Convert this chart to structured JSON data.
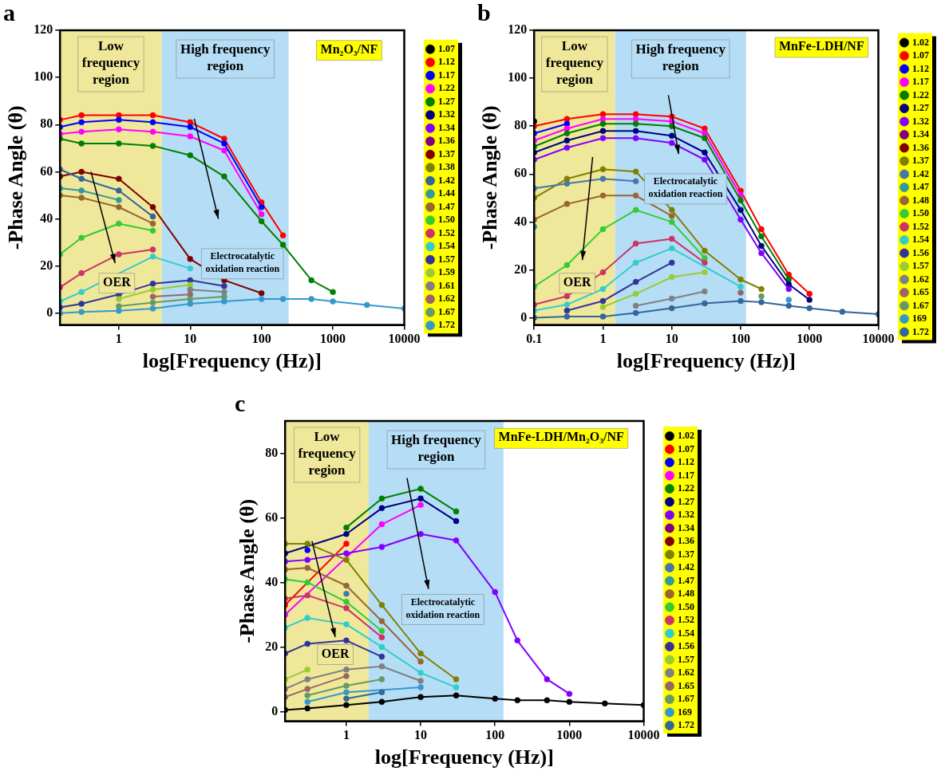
{
  "chart_data": [
    {
      "type": "line",
      "title": "a",
      "xlabel": "log[Frequency (Hz)]",
      "ylabel": "-Phase Angle (θ)",
      "log": "x",
      "marker": "circle",
      "legend": "right",
      "xlim": [
        0.15,
        10000
      ],
      "xticks": [
        1,
        10,
        100,
        1000,
        10000
      ],
      "ylim": [
        -5,
        120
      ],
      "yticks": [
        0,
        20,
        40,
        60,
        80,
        100,
        120
      ],
      "bands": [
        {
          "axis": "x",
          "from": 0.15,
          "to": 4,
          "label": "Low frequency region",
          "color": "#efe89a"
        },
        {
          "axis": "x",
          "from": 4,
          "to": 240,
          "label": "High frequency region",
          "color": "#b5ddf6"
        }
      ],
      "annotations": [
        "Mn₂O₃/NF",
        "Electrocatalytic oxidation reaction",
        "OER"
      ],
      "x": [
        0.15,
        0.3,
        1,
        3,
        10,
        30,
        100,
        200,
        500,
        1000,
        3000,
        10000
      ],
      "series": [
        {
          "name": "1.07",
          "color": "#000000",
          "values": [
            null,
            null,
            null,
            null,
            null,
            null,
            null,
            null,
            null,
            null,
            null,
            null
          ]
        },
        {
          "name": "1.12",
          "color": "#ff0000",
          "values": [
            82,
            84,
            84,
            84,
            81,
            74,
            47,
            33,
            null,
            null,
            null,
            null
          ]
        },
        {
          "name": "1.17",
          "color": "#0000ff",
          "values": [
            79,
            81,
            82,
            81,
            79,
            72,
            45,
            null,
            null,
            null,
            null,
            null
          ]
        },
        {
          "name": "1.22",
          "color": "#ff00ff",
          "values": [
            76,
            77,
            78,
            77,
            75,
            69,
            42,
            null,
            null,
            null,
            null,
            null
          ]
        },
        {
          "name": "1.27",
          "color": "#008000",
          "values": [
            74,
            72,
            72,
            71,
            67,
            58,
            39,
            29,
            14,
            9,
            null,
            null
          ]
        },
        {
          "name": "1.32",
          "color": "#000080",
          "values": [
            null,
            null,
            null,
            null,
            null,
            null,
            null,
            null,
            null,
            null,
            null,
            null
          ]
        },
        {
          "name": "1.34",
          "color": "#8000ff",
          "values": [
            null,
            null,
            null,
            null,
            null,
            null,
            null,
            null,
            null,
            null,
            null,
            null
          ]
        },
        {
          "name": "1.36",
          "color": "#800080",
          "values": [
            null,
            null,
            null,
            null,
            null,
            null,
            null,
            null,
            null,
            null,
            null,
            null
          ]
        },
        {
          "name": "1.37",
          "color": "#800000",
          "values": [
            58,
            60,
            57,
            45,
            23,
            14,
            8.5,
            null,
            null,
            null,
            null,
            null
          ]
        },
        {
          "name": "1.38",
          "color": "#808000",
          "values": [
            null,
            null,
            null,
            null,
            null,
            null,
            null,
            null,
            null,
            null,
            null,
            null
          ]
        },
        {
          "name": "1.42",
          "color": "#336699",
          "values": [
            61,
            57,
            52,
            41,
            null,
            null,
            null,
            null,
            null,
            null,
            null,
            null
          ]
        },
        {
          "name": "1.44",
          "color": "#339999",
          "values": [
            53,
            52,
            48,
            null,
            null,
            null,
            null,
            null,
            null,
            null,
            null,
            null
          ]
        },
        {
          "name": "1.47",
          "color": "#996633",
          "values": [
            50,
            49,
            45,
            38,
            null,
            null,
            null,
            null,
            null,
            null,
            null,
            null
          ]
        },
        {
          "name": "1.50",
          "color": "#33cc33",
          "values": [
            25,
            32,
            38,
            35,
            null,
            null,
            null,
            null,
            null,
            null,
            null,
            null
          ]
        },
        {
          "name": "1.52",
          "color": "#cc3366",
          "values": [
            11,
            17,
            25,
            27,
            null,
            null,
            null,
            null,
            null,
            null,
            null,
            null
          ]
        },
        {
          "name": "1.54",
          "color": "#33cccc",
          "values": [
            5,
            9,
            null,
            24,
            19,
            null,
            null,
            null,
            null,
            null,
            null,
            null
          ]
        },
        {
          "name": "1.57",
          "color": "#333399",
          "values": [
            2.5,
            4,
            8,
            12.5,
            14,
            11.5,
            null,
            null,
            null,
            null,
            null,
            null
          ]
        },
        {
          "name": "1.59",
          "color": "#99cc33",
          "values": [
            null,
            null,
            6,
            10,
            12,
            null,
            null,
            null,
            null,
            null,
            null,
            null
          ]
        },
        {
          "name": "1.61",
          "color": "#808080",
          "values": [
            null,
            null,
            null,
            null,
            10,
            9,
            null,
            null,
            null,
            null,
            null,
            null
          ]
        },
        {
          "name": "1.62",
          "color": "#996666",
          "values": [
            null,
            null,
            null,
            7,
            8,
            null,
            null,
            null,
            null,
            null,
            null,
            null
          ]
        },
        {
          "name": "1.67",
          "color": "#669966",
          "values": [
            null,
            null,
            3,
            4.5,
            6,
            7,
            null,
            null,
            null,
            null,
            null,
            null
          ]
        },
        {
          "name": "1.72",
          "color": "#3399cc",
          "values": [
            0,
            0.5,
            1,
            2,
            4,
            5,
            6,
            6,
            6,
            5,
            3.5,
            2
          ]
        }
      ]
    },
    {
      "type": "line",
      "title": "b",
      "xlabel": "log[Frequency (Hz)]",
      "ylabel": "-Phase Angle (θ)",
      "log": "x",
      "marker": "circle",
      "legend": "right",
      "xlim": [
        0.1,
        10000
      ],
      "xticks": [
        0.1,
        1,
        10,
        100,
        1000,
        10000
      ],
      "ylim": [
        -3,
        120
      ],
      "yticks": [
        0,
        20,
        40,
        60,
        80,
        100,
        120
      ],
      "bands": [
        {
          "axis": "x",
          "from": 0.1,
          "to": 1.5,
          "label": "Low frequency region",
          "color": "#efe89a"
        },
        {
          "axis": "x",
          "from": 1.5,
          "to": 120,
          "label": "High frequency region",
          "color": "#b5ddf6"
        }
      ],
      "annotations": [
        "MnFe-LDH/NF",
        "Electrocatalytic oxidation reaction",
        "OER"
      ],
      "x": [
        0.1,
        0.3,
        1,
        3,
        10,
        30,
        100,
        200,
        500,
        1000,
        3000,
        10000
      ],
      "series": [
        {
          "name": "1.02",
          "color": "#000000",
          "values": [
            82,
            null,
            null,
            null,
            null,
            null,
            null,
            null,
            null,
            null,
            null,
            null
          ]
        },
        {
          "name": "1.07",
          "color": "#ff0000",
          "values": [
            80,
            83,
            85,
            85,
            84,
            79,
            53,
            37,
            18,
            10,
            null,
            null
          ]
        },
        {
          "name": "1.12",
          "color": "#0000ff",
          "values": [
            77,
            81,
            null,
            null,
            null,
            null,
            null,
            null,
            null,
            null,
            null,
            null
          ]
        },
        {
          "name": "1.17",
          "color": "#ff00ff",
          "values": [
            74,
            79,
            83,
            83,
            82,
            77,
            51,
            null,
            null,
            null,
            null,
            null
          ]
        },
        {
          "name": "1.22",
          "color": "#008000",
          "values": [
            71.5,
            77,
            81,
            81,
            80,
            75,
            49,
            34,
            16,
            null,
            null,
            null
          ]
        },
        {
          "name": "1.27",
          "color": "#000080",
          "values": [
            69,
            74,
            78,
            78,
            76,
            69,
            45,
            30,
            14,
            7.5,
            null,
            null
          ]
        },
        {
          "name": "1.32",
          "color": "#8000ff",
          "values": [
            66,
            71,
            75,
            75,
            73,
            66,
            41,
            27,
            12,
            null,
            null,
            null
          ]
        },
        {
          "name": "1.34",
          "color": "#800080",
          "values": [
            null,
            null,
            null,
            null,
            null,
            null,
            null,
            null,
            null,
            null,
            null,
            null
          ]
        },
        {
          "name": "1.36",
          "color": "#800000",
          "values": [
            null,
            null,
            null,
            null,
            null,
            null,
            null,
            null,
            null,
            null,
            null,
            null
          ]
        },
        {
          "name": "1.37",
          "color": "#808000",
          "values": [
            50,
            58,
            62,
            61,
            45,
            28,
            16,
            12,
            null,
            null,
            null,
            null
          ]
        },
        {
          "name": "1.42",
          "color": "#4477aa",
          "values": [
            54,
            56,
            58,
            57,
            null,
            null,
            null,
            null,
            null,
            null,
            null,
            null
          ]
        },
        {
          "name": "1.47",
          "color": "#339999",
          "values": [
            38,
            null,
            null,
            null,
            null,
            null,
            null,
            null,
            null,
            null,
            null,
            null
          ]
        },
        {
          "name": "1.48",
          "color": "#996633",
          "values": [
            41,
            47.5,
            51,
            51,
            42.5,
            null,
            null,
            null,
            null,
            null,
            null,
            null
          ]
        },
        {
          "name": "1.50",
          "color": "#33cc33",
          "values": [
            13,
            22,
            37,
            45,
            40,
            25,
            null,
            null,
            null,
            null,
            null,
            null
          ]
        },
        {
          "name": "1.52",
          "color": "#cc3366",
          "values": [
            5.5,
            9,
            19,
            31,
            33,
            23,
            null,
            null,
            null,
            null,
            null,
            null
          ]
        },
        {
          "name": "1.54",
          "color": "#33cccc",
          "values": [
            3,
            5.5,
            12,
            23,
            29,
            null,
            13,
            null,
            null,
            null,
            null,
            null
          ]
        },
        {
          "name": "1.56",
          "color": "#333399",
          "values": [
            null,
            3,
            7,
            15,
            23,
            null,
            null,
            null,
            null,
            null,
            null,
            null
          ]
        },
        {
          "name": "1.57",
          "color": "#99cc33",
          "values": [
            null,
            null,
            4.5,
            10,
            17,
            19,
            null,
            null,
            null,
            null,
            null,
            null
          ]
        },
        {
          "name": "1.62",
          "color": "#808080",
          "values": [
            null,
            null,
            null,
            5,
            8,
            11,
            null,
            null,
            null,
            null,
            null,
            null
          ]
        },
        {
          "name": "1.65",
          "color": "#996666",
          "values": [
            null,
            null,
            null,
            null,
            null,
            null,
            10.5,
            null,
            null,
            null,
            null,
            null
          ]
        },
        {
          "name": "1.67",
          "color": "#669966",
          "values": [
            null,
            null,
            null,
            null,
            null,
            null,
            null,
            9,
            null,
            null,
            null,
            null
          ]
        },
        {
          "name": "169",
          "color": "#3399cc",
          "values": [
            null,
            null,
            null,
            null,
            null,
            null,
            null,
            null,
            7.5,
            null,
            null,
            null
          ]
        },
        {
          "name": "1.72",
          "color": "#336699",
          "values": [
            0,
            0.5,
            0.5,
            2,
            4,
            6,
            7,
            6.5,
            5,
            4,
            2.5,
            1.5
          ]
        }
      ]
    },
    {
      "type": "line",
      "title": "c",
      "xlabel": "log[Frequency (Hz)]",
      "ylabel": "-Phase Angle (θ)",
      "log": "x",
      "marker": "circle",
      "legend": "right",
      "xlim": [
        0.15,
        10000
      ],
      "xticks": [
        1,
        10,
        100,
        1000,
        10000
      ],
      "ylim": [
        -3,
        90
      ],
      "yticks": [
        0,
        20,
        40,
        60,
        80
      ],
      "bands": [
        {
          "axis": "x",
          "from": 0.15,
          "to": 2,
          "label": "Low frequency region",
          "color": "#efe89a"
        },
        {
          "axis": "x",
          "from": 2,
          "to": 130,
          "label": "High frequency region",
          "color": "#b5ddf6"
        }
      ],
      "annotations": [
        "MnFe-LDH/Mn₂O₃/NF",
        "Electrocatalytic oxidation reaction",
        "OER"
      ],
      "x": [
        0.15,
        0.3,
        1,
        3,
        10,
        30,
        100,
        200,
        500,
        1000,
        3000,
        10000
      ],
      "series": [
        {
          "name": "1.02",
          "color": "#000000",
          "values": [
            0.5,
            1,
            2,
            3,
            4.5,
            5,
            4,
            3.5,
            3.5,
            3,
            2.5,
            2
          ]
        },
        {
          "name": "1.07",
          "color": "#ff0000",
          "values": [
            33,
            null,
            52,
            null,
            null,
            null,
            null,
            null,
            null,
            null,
            null,
            null
          ]
        },
        {
          "name": "1.12",
          "color": "#0000ff",
          "values": [
            null,
            50,
            null,
            null,
            null,
            null,
            null,
            null,
            null,
            null,
            null,
            null
          ]
        },
        {
          "name": "1.17",
          "color": "#ff00ff",
          "values": [
            30,
            null,
            null,
            58,
            64,
            null,
            null,
            null,
            null,
            null,
            null,
            null
          ]
        },
        {
          "name": "1.22",
          "color": "#008000",
          "values": [
            null,
            null,
            57,
            66,
            69,
            62,
            null,
            null,
            null,
            null,
            null,
            null
          ]
        },
        {
          "name": "1.27",
          "color": "#000080",
          "values": [
            49,
            null,
            55,
            63,
            66,
            59,
            null,
            null,
            null,
            null,
            null,
            null
          ]
        },
        {
          "name": "1.32",
          "color": "#8000ff",
          "values": [
            46.5,
            47,
            49,
            51,
            55,
            53,
            37,
            22,
            10,
            5.5,
            null,
            null
          ]
        },
        {
          "name": "1.34",
          "color": "#800080",
          "values": [
            null,
            null,
            null,
            null,
            null,
            null,
            null,
            null,
            null,
            null,
            null,
            null
          ]
        },
        {
          "name": "1.36",
          "color": "#800000",
          "values": [
            null,
            null,
            null,
            null,
            null,
            null,
            null,
            null,
            null,
            null,
            null,
            null
          ]
        },
        {
          "name": "1.37",
          "color": "#808000",
          "values": [
            52,
            52,
            47,
            33,
            18,
            10,
            null,
            null,
            null,
            null,
            null,
            null
          ]
        },
        {
          "name": "1.42",
          "color": "#4477aa",
          "values": [
            null,
            null,
            36.5,
            null,
            null,
            null,
            null,
            null,
            null,
            null,
            null,
            null
          ]
        },
        {
          "name": "1.47",
          "color": "#339999",
          "values": [
            null,
            null,
            null,
            null,
            null,
            null,
            null,
            null,
            null,
            null,
            null,
            null
          ]
        },
        {
          "name": "1.48",
          "color": "#996633",
          "values": [
            44,
            44.5,
            39,
            28,
            15.5,
            null,
            null,
            null,
            null,
            null,
            null,
            null
          ]
        },
        {
          "name": "1.50",
          "color": "#33cc33",
          "values": [
            41,
            40,
            34,
            25,
            null,
            null,
            null,
            null,
            null,
            null,
            null,
            null
          ]
        },
        {
          "name": "1.52",
          "color": "#cc3366",
          "values": [
            35,
            36,
            32,
            23,
            null,
            null,
            null,
            null,
            null,
            null,
            null,
            null
          ]
        },
        {
          "name": "1.54",
          "color": "#33cccc",
          "values": [
            26,
            29,
            27,
            20,
            12,
            7.5,
            null,
            null,
            null,
            null,
            null,
            null
          ]
        },
        {
          "name": "1.56",
          "color": "#333399",
          "values": [
            18,
            21,
            22,
            17,
            null,
            null,
            null,
            null,
            null,
            null,
            null,
            null
          ]
        },
        {
          "name": "1.57",
          "color": "#99cc33",
          "values": [
            10,
            13,
            null,
            null,
            null,
            null,
            null,
            null,
            null,
            null,
            null,
            null
          ]
        },
        {
          "name": "1.62",
          "color": "#808080",
          "values": [
            7,
            10,
            13,
            14,
            9.5,
            null,
            null,
            null,
            null,
            null,
            null,
            null
          ]
        },
        {
          "name": "1.65",
          "color": "#996666",
          "values": [
            4.5,
            7,
            11,
            null,
            null,
            null,
            null,
            null,
            null,
            null,
            null,
            null
          ]
        },
        {
          "name": "1.67",
          "color": "#669966",
          "values": [
            null,
            5,
            8,
            10,
            null,
            null,
            null,
            null,
            null,
            null,
            null,
            null
          ]
        },
        {
          "name": "169",
          "color": "#3399cc",
          "values": [
            null,
            3,
            6,
            null,
            7.5,
            null,
            null,
            null,
            null,
            null,
            null,
            null
          ]
        },
        {
          "name": "1.72",
          "color": "#336699",
          "values": [
            null,
            null,
            4,
            6,
            null,
            null,
            null,
            null,
            null,
            null,
            null,
            null
          ]
        }
      ]
    }
  ]
}
